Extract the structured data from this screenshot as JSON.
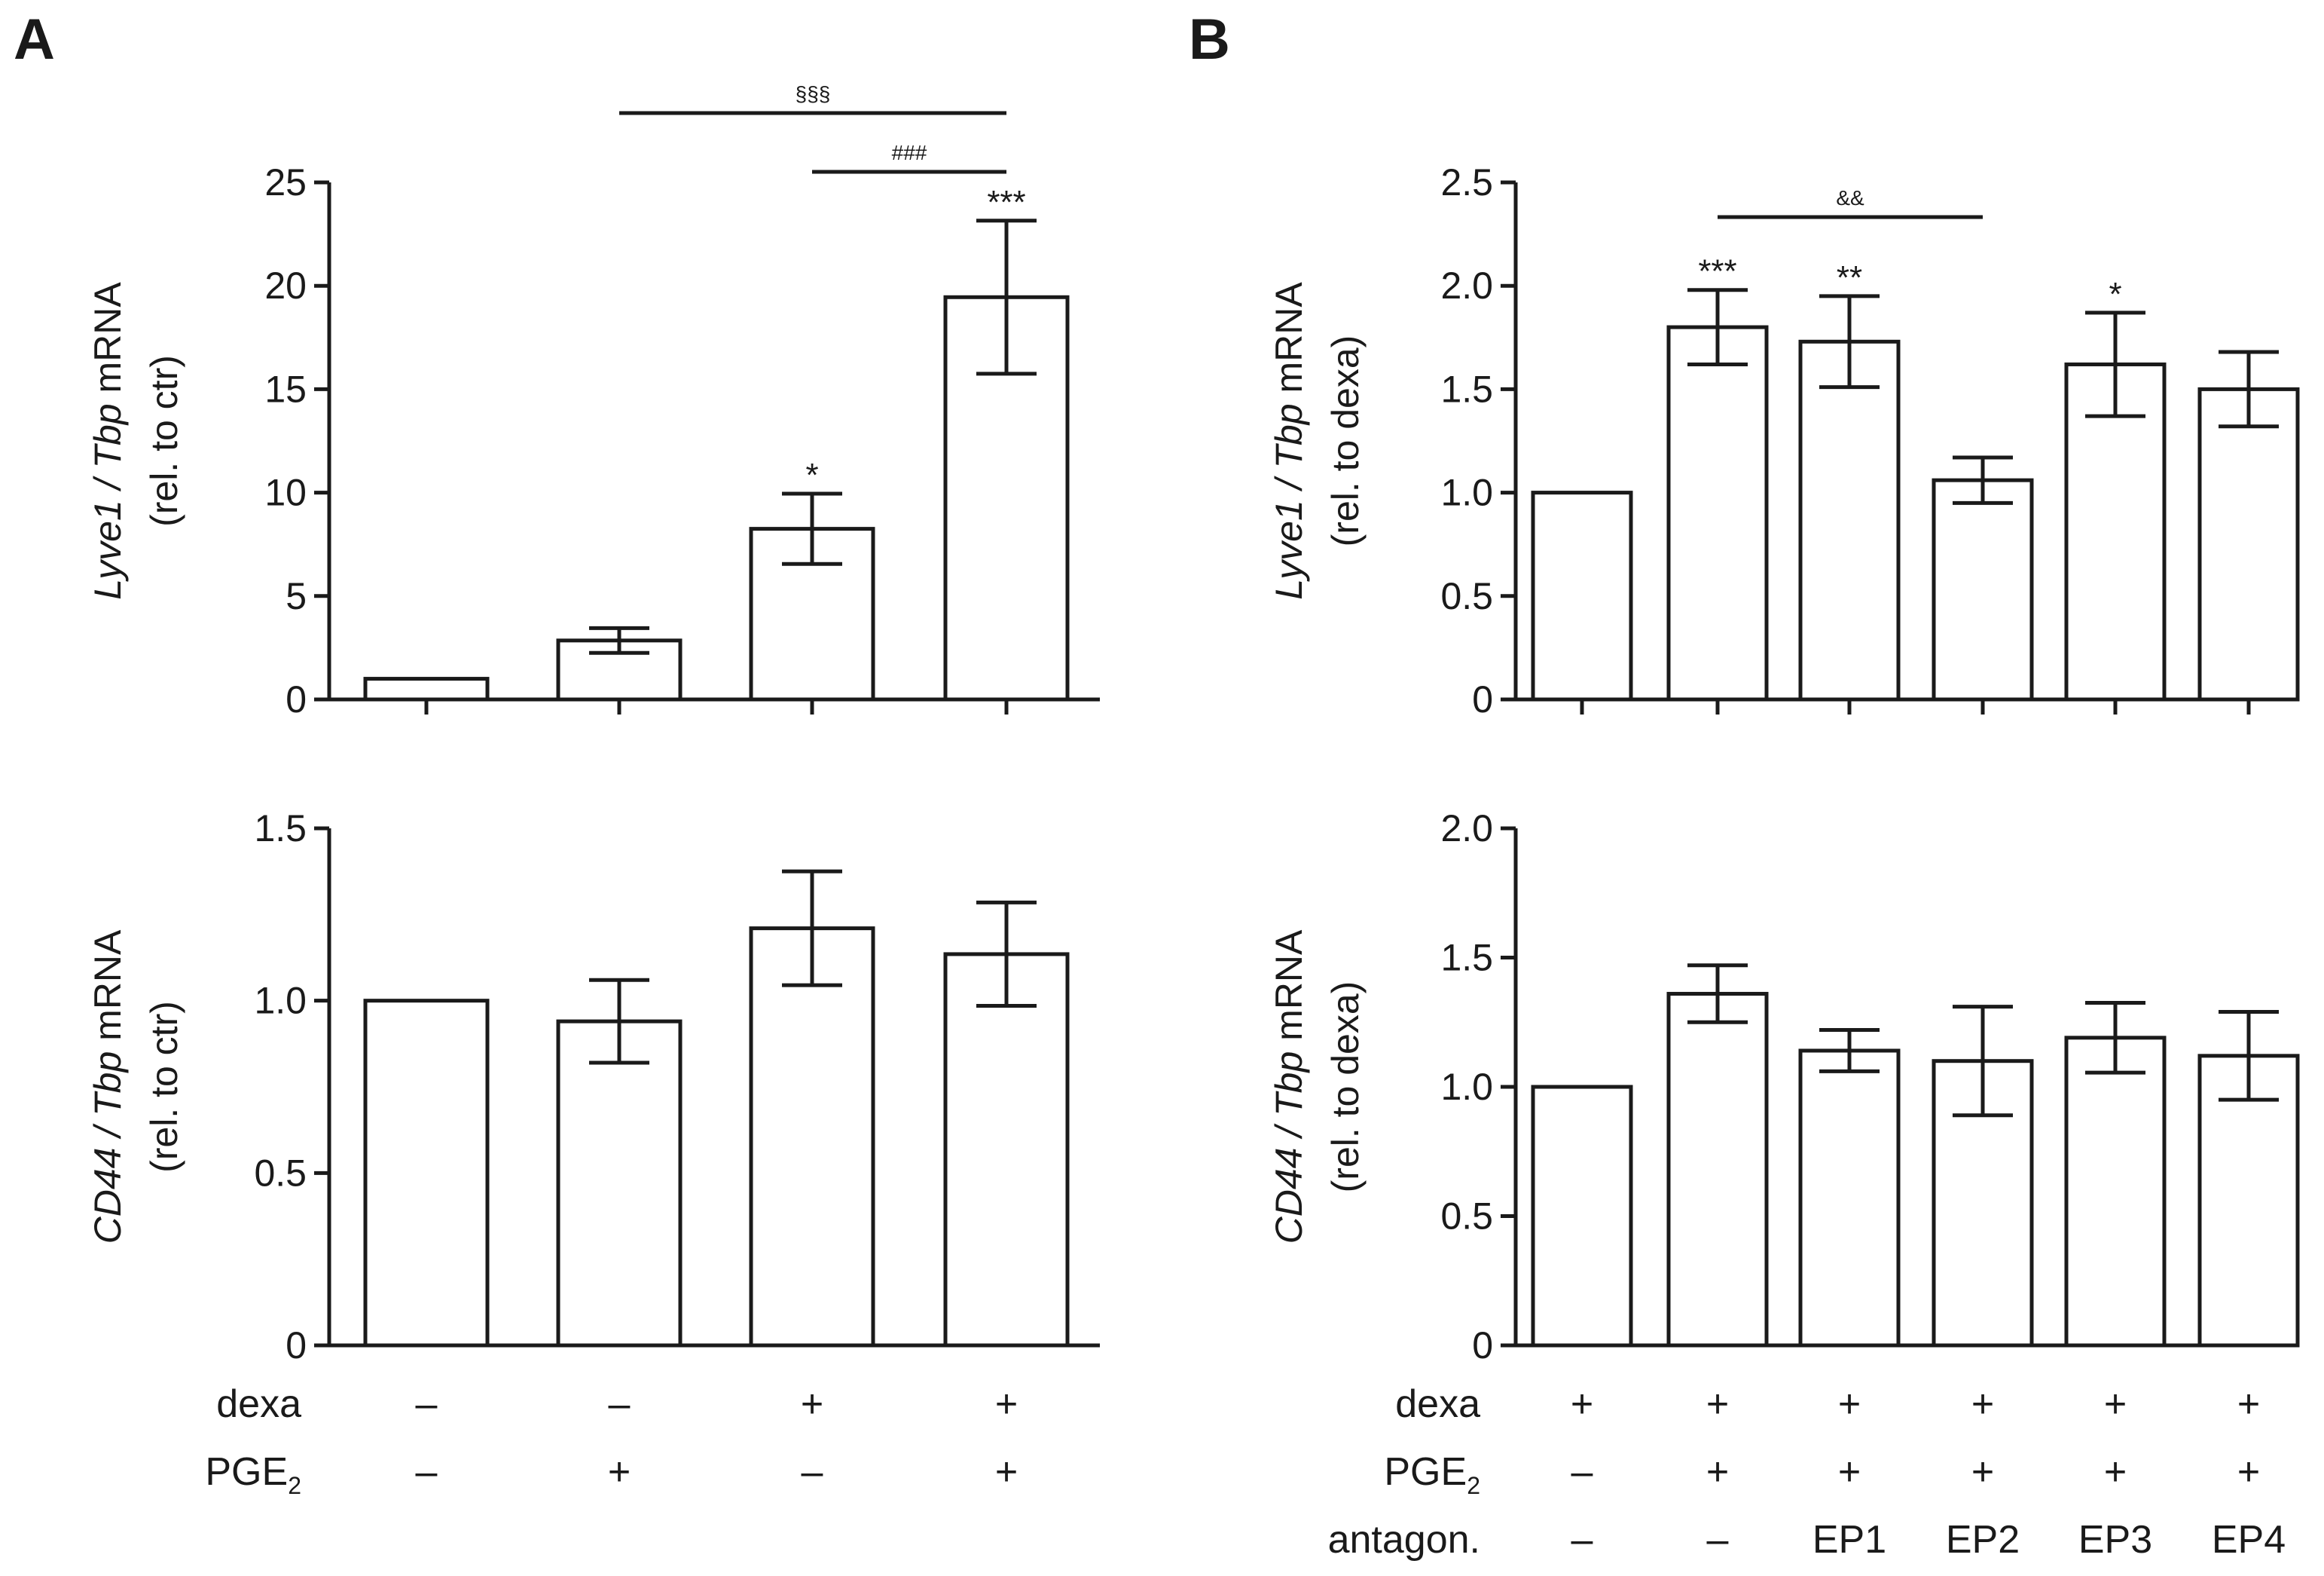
{
  "panel_labels": [
    "A",
    "B"
  ],
  "chart_data": [
    {
      "id": "A_top",
      "type": "bar",
      "ylabel_italic": "Lyve1 / Tbp",
      "ylabel_rest": " mRNA",
      "ylabel_line2": "(rel. to ctr)",
      "ylim": [
        0,
        25
      ],
      "yticks": [
        "0",
        "5",
        "10",
        "15",
        "20",
        "25"
      ],
      "values": [
        1,
        2.85,
        8.25,
        19.45
      ],
      "errors": [
        0,
        0.6,
        1.7,
        3.7
      ],
      "sig_marks": [
        "",
        "",
        "*",
        "***"
      ],
      "brackets": [
        {
          "from": 1,
          "to": 3,
          "label": "§§§"
        },
        {
          "from": 2,
          "to": 3,
          "label": "###"
        }
      ]
    },
    {
      "id": "A_bottom",
      "type": "bar",
      "ylabel_italic": "CD44 / Tbp",
      "ylabel_rest": " mRNA",
      "ylabel_line2": "(rel. to ctr)",
      "ylim": [
        0,
        1.5
      ],
      "yticks": [
        "0",
        "0.5",
        "1.0",
        "1.5"
      ],
      "values": [
        1.0,
        0.94,
        1.21,
        1.135
      ],
      "errors": [
        0,
        0.12,
        0.165,
        0.15
      ],
      "sig_marks": [
        "",
        "",
        "",
        ""
      ],
      "brackets": []
    },
    {
      "id": "B_top",
      "type": "bar",
      "ylabel_italic": "Lyve1 / Tbp",
      "ylabel_rest": " mRNA",
      "ylabel_line2": "(rel. to dexa)",
      "ylim": [
        0,
        2.5
      ],
      "yticks": [
        "0",
        "0.5",
        "1.0",
        "1.5",
        "2.0",
        "2.5"
      ],
      "values": [
        1.0,
        1.8,
        1.73,
        1.06,
        1.62,
        1.5
      ],
      "errors": [
        0,
        0.18,
        0.22,
        0.11,
        0.25,
        0.18
      ],
      "sig_marks": [
        "",
        "***",
        "**",
        "",
        "*",
        ""
      ],
      "brackets": [
        {
          "from": 1,
          "to": 3,
          "label": "&&"
        }
      ]
    },
    {
      "id": "B_bottom",
      "type": "bar",
      "ylabel_italic": "CD44 / Tbp",
      "ylabel_rest": " mRNA",
      "ylabel_line2": "(rel. to dexa)",
      "ylim": [
        0,
        2.0
      ],
      "yticks": [
        "0",
        "0.5",
        "1.0",
        "1.5",
        "2.0"
      ],
      "values": [
        1.0,
        1.36,
        1.14,
        1.1,
        1.19,
        1.12
      ],
      "errors": [
        0,
        0.11,
        0.08,
        0.21,
        0.135,
        0.17
      ],
      "sig_marks": [
        "",
        "",
        "",
        "",
        "",
        ""
      ],
      "brackets": []
    }
  ],
  "conditions": {
    "A": {
      "rows": [
        {
          "label": "dexa",
          "values": [
            "–",
            "–",
            "+",
            "+"
          ]
        },
        {
          "label": "PGE",
          "subscript": "2",
          "values": [
            "–",
            "+",
            "–",
            "+"
          ]
        }
      ]
    },
    "B": {
      "rows": [
        {
          "label": "dexa",
          "values": [
            "+",
            "+",
            "+",
            "+",
            "+",
            "+"
          ]
        },
        {
          "label": "PGE",
          "subscript": "2",
          "values": [
            "–",
            "+",
            "+",
            "+",
            "+",
            "+"
          ]
        },
        {
          "label": "antagon.",
          "values": [
            "–",
            "–",
            "EP1",
            "EP2",
            "EP3",
            "EP4"
          ]
        }
      ]
    }
  }
}
